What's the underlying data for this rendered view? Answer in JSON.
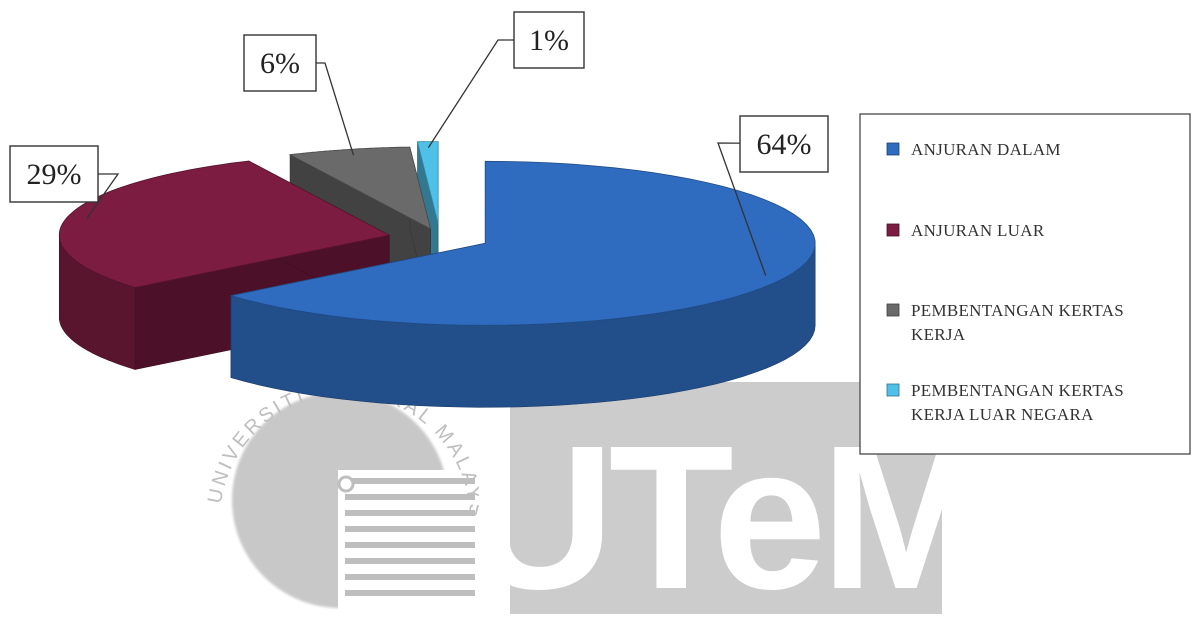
{
  "chart_data": {
    "type": "pie",
    "title": "",
    "style": "3d-exploded",
    "slices": [
      {
        "label": "ANJURAN DALAM",
        "value": 64,
        "display": "64%",
        "color": "#2f6cc0"
      },
      {
        "label": "ANJURAN LUAR",
        "value": 29,
        "display": "29%",
        "color": "#7b1c40"
      },
      {
        "label": "PEMBENTANGAN KERTAS KERJA",
        "value": 6,
        "display": "6%",
        "color": "#6a6a6a"
      },
      {
        "label": "PEMBENTANGAN KERTAS KERJA LUAR NEGARA",
        "value": 1,
        "display": "1%",
        "color": "#4fc1e8"
      }
    ],
    "legend": {
      "position": "right",
      "entries": [
        {
          "lines": [
            "ANJURAN DALAM"
          ],
          "color": "#2f6cc0"
        },
        {
          "lines": [
            "ANJURAN LUAR"
          ],
          "color": "#7b1c40"
        },
        {
          "lines": [
            "PEMBENTANGAN KERTAS",
            "KERJA"
          ],
          "color": "#6a6a6a"
        },
        {
          "lines": [
            "PEMBENTANGAN KERTAS",
            "KERJA LUAR NEGARA"
          ],
          "color": "#4fc1e8"
        }
      ]
    }
  },
  "watermark": {
    "logo_text": "UTeM",
    "seal_text": "UNIVERSITI TEKNIKAL MALAYSIA MELAKA",
    "color": "#8f8f8f"
  }
}
